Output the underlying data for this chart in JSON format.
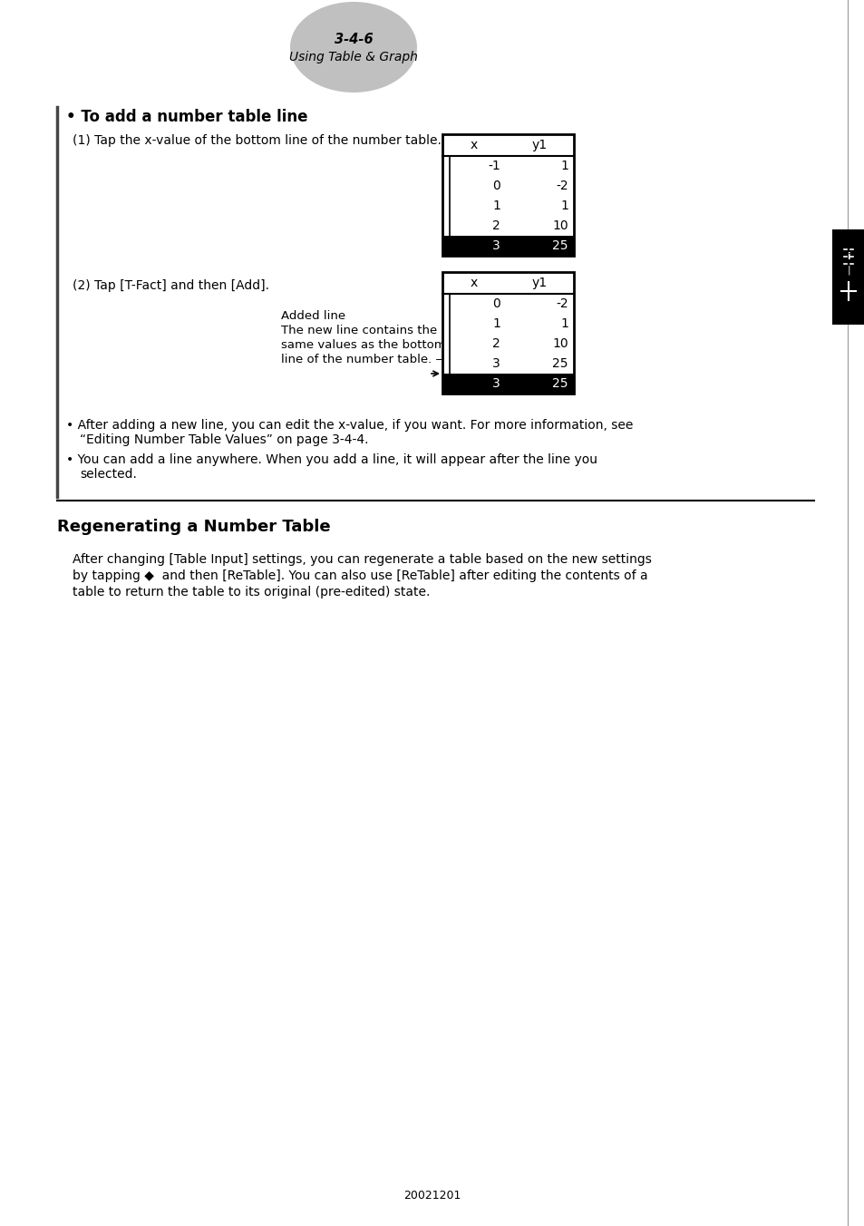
{
  "page_label": "3-4-6",
  "page_sublabel": "Using Table & Graph",
  "section_title": "• To add a number table line",
  "step1_text": "(1) Tap the x-value of the bottom line of the number table.",
  "step2_text": "(2) Tap [T-Fact] and then [Add].",
  "annotation_line1": "Added line",
  "annotation_line2": "The new line contains the",
  "annotation_line3": "same values as the bottom",
  "annotation_line4": "line of the number table. —",
  "bullet1_line1": "• After adding a new line, you can edit the x-value, if you want. For more information, see",
  "bullet1_line2": "“Editing Number Table Values” on page 3-4-4.",
  "bullet2_line1": "• You can add a line anywhere. When you add a line, it will appear after the line you",
  "bullet2_line2": "selected.",
  "section2_title": "Regenerating a Number Table",
  "section2_body_line1": "After changing [Table Input] settings, you can regenerate a table based on the new settings",
  "section2_body_line2": "by tapping ◆  and then [ReTable]. You can also use [ReTable] after editing the contents of a",
  "section2_body_line3": "table to return the table to its original (pre-edited) state.",
  "footer": "20021201",
  "table1_headers": [
    "x",
    "y1"
  ],
  "table1_rows": [
    [
      "-1",
      "1"
    ],
    [
      "0",
      "-2"
    ],
    [
      "1",
      "1"
    ],
    [
      "2",
      "10"
    ],
    [
      "3",
      "25"
    ]
  ],
  "table1_selected_row": 4,
  "table2_headers": [
    "x",
    "y1"
  ],
  "table2_rows": [
    [
      "0",
      "-2"
    ],
    [
      "1",
      "1"
    ],
    [
      "2",
      "10"
    ],
    [
      "3",
      "25"
    ],
    [
      "3",
      "25"
    ]
  ],
  "table2_selected_row": 4,
  "bg_color": "#ffffff",
  "text_color": "#000000",
  "ellipse_color": "#c0c0c0",
  "sidebar_color": "#000000"
}
